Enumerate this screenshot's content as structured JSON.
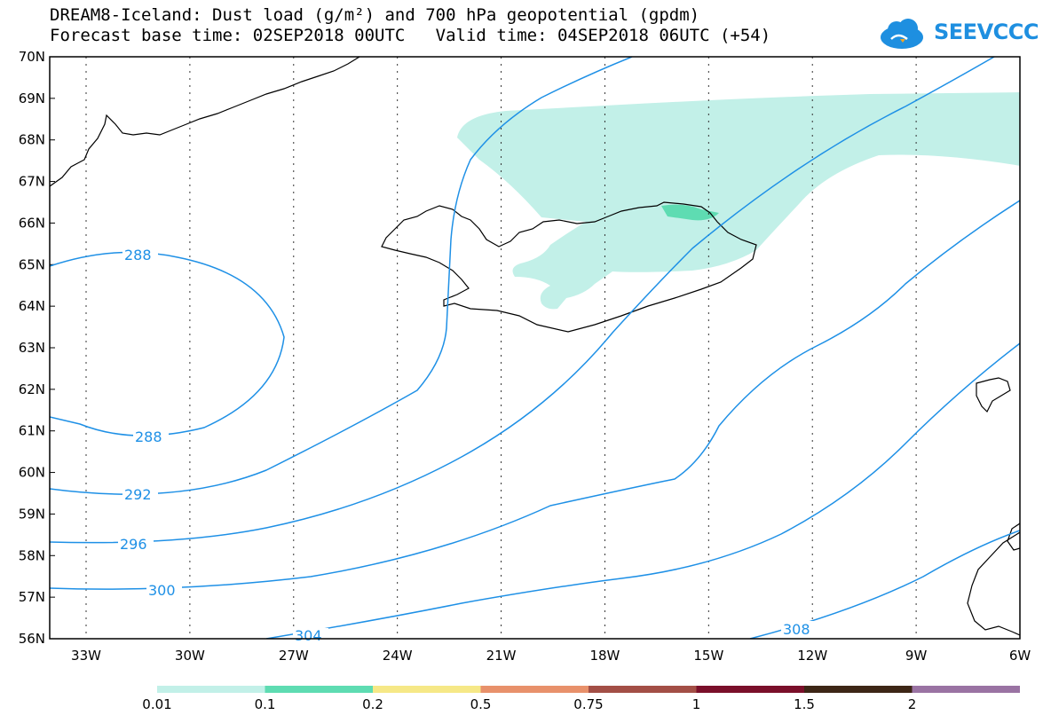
{
  "title": {
    "line1": "DREAM8-Iceland: Dust load (g/m²) and 700 hPa geopotential (gpdm)",
    "line2": "Forecast base time: 02SEP2018 00UTC   Valid time: 04SEP2018 06UTC (+54)"
  },
  "logo": {
    "text": "SEEVCCC",
    "icon": "cloud-icon"
  },
  "map": {
    "lat_labels": [
      "70N",
      "69N",
      "68N",
      "67N",
      "66N",
      "65N",
      "64N",
      "63N",
      "62N",
      "61N",
      "60N",
      "59N",
      "58N",
      "57N",
      "56N"
    ],
    "lon_labels": [
      "33W",
      "30W",
      "27W",
      "24W",
      "21W",
      "18W",
      "15W",
      "12W",
      "9W",
      "6W"
    ],
    "contour_labels": [
      "288",
      "288",
      "292",
      "296",
      "300",
      "304",
      "308"
    ]
  },
  "legend": {
    "colors": [
      "#c2f0e8",
      "#5edcb2",
      "#f6e887",
      "#e8916b",
      "#a34f46",
      "#7a0f2a",
      "#3d2616",
      "#9a73a3"
    ],
    "labels": [
      "0.01",
      "0.1",
      "0.2",
      "0.5",
      "0.75",
      "1",
      "1.5",
      "2"
    ]
  },
  "colors": {
    "contour": "#1e90e6",
    "dust_low": "#c2f0e8",
    "dust_mid": "#5edcb2"
  }
}
